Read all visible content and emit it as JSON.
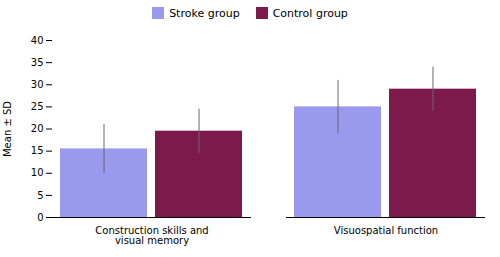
{
  "chart_data": {
    "type": "bar",
    "categories": [
      "Construction skills and\nvisual memory",
      "Visuospatial function"
    ],
    "series": [
      {
        "name": "Stroke group",
        "color": "#9999ee",
        "values": [
          15.5,
          25.0
        ],
        "errors": [
          5.5,
          6.0
        ]
      },
      {
        "name": "Control group",
        "color": "#7b1a4b",
        "values": [
          19.5,
          29.0
        ],
        "errors": [
          5.0,
          5.0
        ]
      }
    ],
    "ylabel": "Mean ± SD",
    "ylim": [
      0,
      40
    ],
    "yticks": [
      0,
      5,
      10,
      15,
      20,
      25,
      30,
      35,
      40
    ],
    "grid": false,
    "legend": "top"
  }
}
